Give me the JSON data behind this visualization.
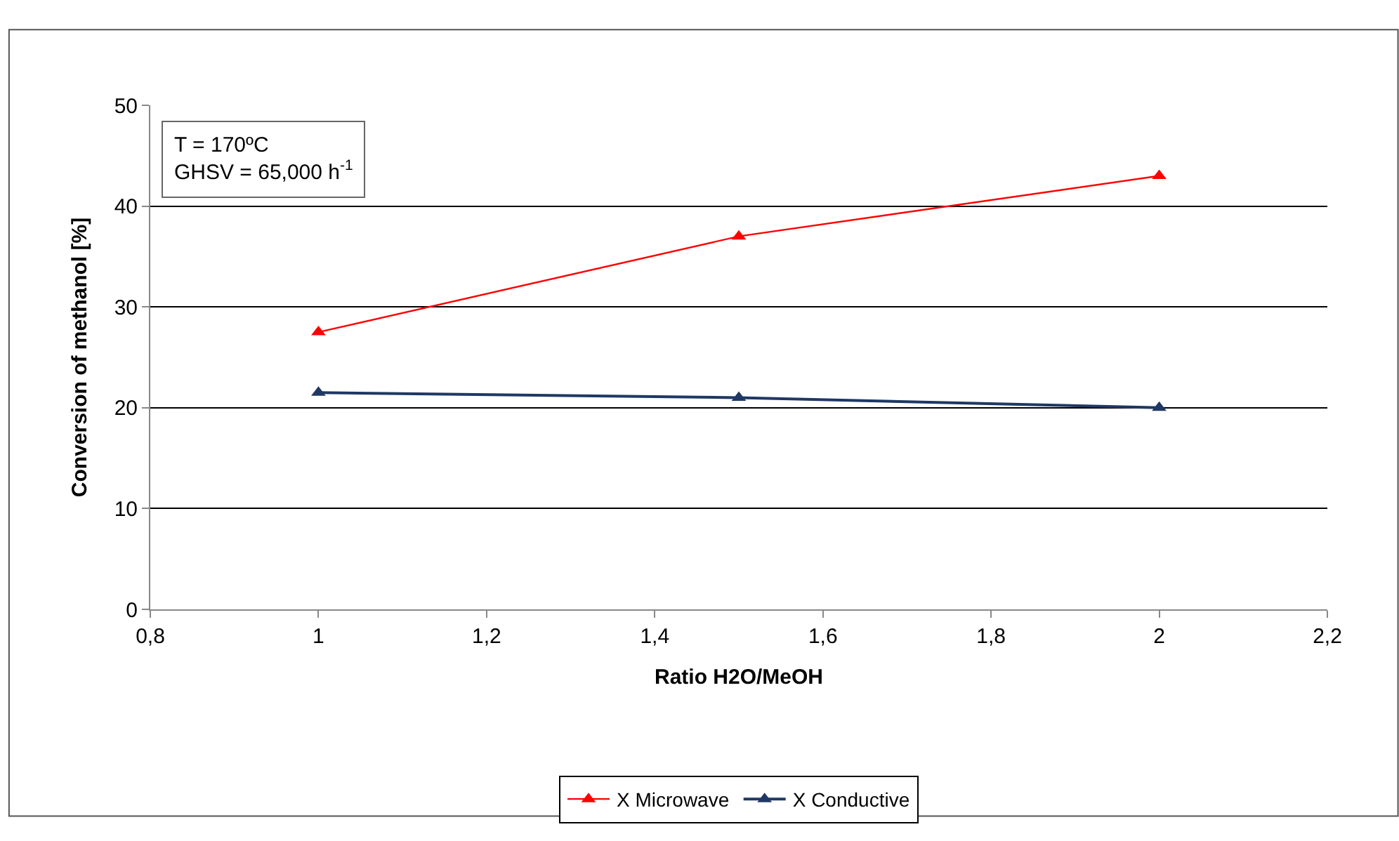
{
  "chart_data": {
    "type": "line",
    "xlabel": "Ratio H2O/MeOH",
    "ylabel": "Conversion of methanol [%]",
    "x": [
      1,
      1.5,
      2
    ],
    "series": [
      {
        "name": "X Microwave",
        "color": "#ff0000",
        "values": [
          27.5,
          37,
          43
        ]
      },
      {
        "name": "X Conductive",
        "color": "#1f3864",
        "values": [
          21.5,
          21,
          20
        ]
      }
    ],
    "xlim": [
      0.8,
      2.2
    ],
    "xticks": [
      {
        "value": 0.8,
        "label": "0,8"
      },
      1,
      {
        "value": 1.2,
        "label": "1,2"
      },
      {
        "value": 1.4,
        "label": "1,4"
      },
      {
        "value": 1.6,
        "label": "1,6"
      },
      {
        "value": 1.8,
        "label": "1,8"
      },
      2,
      {
        "value": 2.2,
        "label": "2,2"
      }
    ],
    "ylim": [
      0,
      50
    ],
    "yticks": [
      0,
      10,
      20,
      30,
      40,
      50
    ],
    "annotations": [
      "T = 170ºC",
      "GHSV = 65,000 h$^{-1}$"
    ],
    "grid": "y",
    "legend": "bottom",
    "marker": "triangle",
    "line_style": "solid"
  }
}
